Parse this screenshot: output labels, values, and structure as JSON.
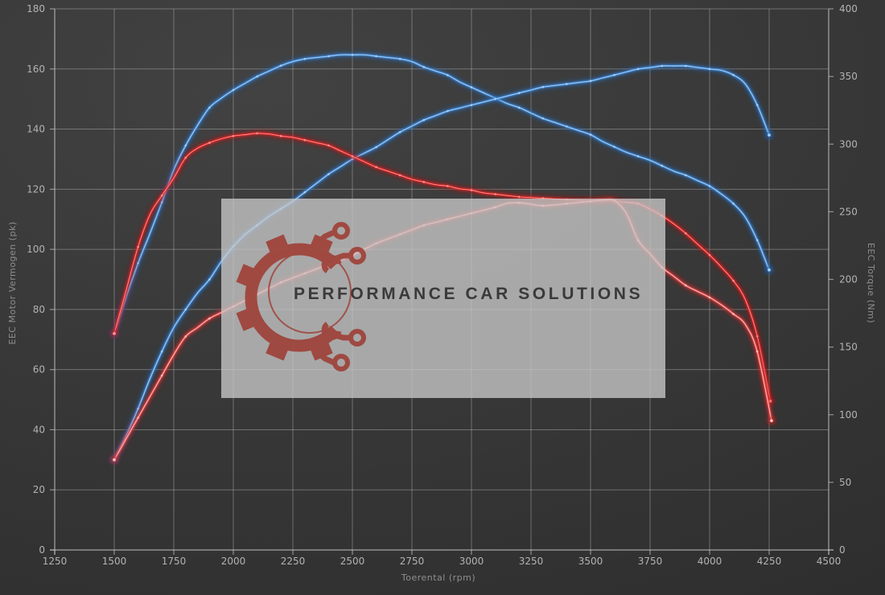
{
  "watermark": {
    "brand": "PERFORMANCE CAR SOLUTIONS",
    "logo_icon": "gear-circuit-logo",
    "logo_color": "#9e3f36",
    "text_color": "#3a3a3a",
    "box_color": "#c8c8c8"
  },
  "colors": {
    "background": "#383838",
    "grid": "#d0d0d0",
    "blue_curve": "#4792e0",
    "red_curve": "#e32222"
  },
  "chart_data": {
    "type": "line",
    "title": "",
    "xlabel": "Toerental (rpm)",
    "ylabel_left": "EEC Motor Vermogen (pk)",
    "ylabel_right": "EEC Torque (Nm)",
    "xlim": [
      1250,
      4500
    ],
    "ylim_left": [
      0,
      180
    ],
    "ylim_right": [
      0,
      400
    ],
    "grid": true,
    "legend_position": "none",
    "x_ticks": [
      1250,
      1500,
      1750,
      2000,
      2250,
      2500,
      2750,
      3000,
      3250,
      3500,
      3750,
      4000,
      4250,
      4500
    ],
    "y_left_ticks": [
      0,
      20,
      40,
      60,
      80,
      100,
      120,
      140,
      160,
      180
    ],
    "y_right_ticks": [
      0,
      50,
      100,
      150,
      200,
      250,
      300,
      350,
      400
    ],
    "series": [
      {
        "name": "torque-tuned-blue",
        "axis": "right",
        "unit": "Nm",
        "color": "#4792e0",
        "glow": "#1f5fae",
        "core": "#aed4f7",
        "points": [
          [
            1500,
            160
          ],
          [
            1550,
            187
          ],
          [
            1600,
            212
          ],
          [
            1650,
            234
          ],
          [
            1700,
            257
          ],
          [
            1750,
            281
          ],
          [
            1800,
            299
          ],
          [
            1850,
            314
          ],
          [
            1900,
            327
          ],
          [
            1950,
            334
          ],
          [
            2000,
            340
          ],
          [
            2050,
            345
          ],
          [
            2100,
            350
          ],
          [
            2150,
            354
          ],
          [
            2200,
            358
          ],
          [
            2250,
            361
          ],
          [
            2300,
            363
          ],
          [
            2350,
            364
          ],
          [
            2400,
            365
          ],
          [
            2450,
            366
          ],
          [
            2500,
            366
          ],
          [
            2550,
            366
          ],
          [
            2600,
            365
          ],
          [
            2650,
            364
          ],
          [
            2700,
            363
          ],
          [
            2750,
            361
          ],
          [
            2800,
            357
          ],
          [
            2850,
            354
          ],
          [
            2900,
            351
          ],
          [
            2950,
            346
          ],
          [
            3000,
            342
          ],
          [
            3050,
            338
          ],
          [
            3100,
            334
          ],
          [
            3150,
            330
          ],
          [
            3200,
            327
          ],
          [
            3250,
            323
          ],
          [
            3300,
            319
          ],
          [
            3350,
            316
          ],
          [
            3400,
            313
          ],
          [
            3450,
            310
          ],
          [
            3500,
            307
          ],
          [
            3550,
            302
          ],
          [
            3600,
            298
          ],
          [
            3650,
            294
          ],
          [
            3700,
            291
          ],
          [
            3750,
            288
          ],
          [
            3800,
            284
          ],
          [
            3850,
            280
          ],
          [
            3900,
            277
          ],
          [
            3950,
            273
          ],
          [
            4000,
            269
          ],
          [
            4050,
            263
          ],
          [
            4100,
            256
          ],
          [
            4150,
            246
          ],
          [
            4200,
            229
          ],
          [
            4250,
            207
          ]
        ]
      },
      {
        "name": "power-tuned-blue",
        "axis": "left",
        "unit": "pk",
        "color": "#4792e0",
        "glow": "#1f5fae",
        "core": "#aed4f7",
        "points": [
          [
            1500,
            30
          ],
          [
            1550,
            38
          ],
          [
            1600,
            47
          ],
          [
            1650,
            57
          ],
          [
            1700,
            66
          ],
          [
            1750,
            74
          ],
          [
            1800,
            80
          ],
          [
            1850,
            85.5
          ],
          [
            1900,
            90
          ],
          [
            1950,
            96
          ],
          [
            2000,
            101
          ],
          [
            2050,
            105
          ],
          [
            2100,
            108
          ],
          [
            2150,
            111
          ],
          [
            2200,
            113.5
          ],
          [
            2250,
            116
          ],
          [
            2300,
            119
          ],
          [
            2350,
            122
          ],
          [
            2400,
            125
          ],
          [
            2450,
            127.5
          ],
          [
            2500,
            130
          ],
          [
            2550,
            132
          ],
          [
            2600,
            134
          ],
          [
            2650,
            136.5
          ],
          [
            2700,
            139
          ],
          [
            2750,
            141
          ],
          [
            2800,
            143
          ],
          [
            2850,
            144.5
          ],
          [
            2900,
            146
          ],
          [
            2950,
            147
          ],
          [
            3000,
            148
          ],
          [
            3050,
            149
          ],
          [
            3100,
            150
          ],
          [
            3150,
            151
          ],
          [
            3200,
            152
          ],
          [
            3250,
            153
          ],
          [
            3300,
            154
          ],
          [
            3350,
            154.5
          ],
          [
            3400,
            155
          ],
          [
            3450,
            155.5
          ],
          [
            3500,
            156
          ],
          [
            3550,
            157
          ],
          [
            3600,
            158
          ],
          [
            3650,
            159
          ],
          [
            3700,
            160
          ],
          [
            3750,
            160.5
          ],
          [
            3800,
            161
          ],
          [
            3850,
            161
          ],
          [
            3900,
            161
          ],
          [
            3950,
            160.5
          ],
          [
            4000,
            160
          ],
          [
            4050,
            159.5
          ],
          [
            4100,
            158
          ],
          [
            4150,
            155
          ],
          [
            4200,
            148
          ],
          [
            4250,
            138
          ]
        ]
      },
      {
        "name": "torque-original-red",
        "axis": "right",
        "unit": "Nm",
        "color": "#e32222",
        "glow": "#b51515",
        "core": "#ff9a9a",
        "points": [
          [
            1500,
            160
          ],
          [
            1550,
            192
          ],
          [
            1600,
            224
          ],
          [
            1650,
            248
          ],
          [
            1700,
            262
          ],
          [
            1750,
            275
          ],
          [
            1800,
            290
          ],
          [
            1850,
            297
          ],
          [
            1900,
            301
          ],
          [
            1950,
            304
          ],
          [
            2000,
            306
          ],
          [
            2050,
            307
          ],
          [
            2100,
            308
          ],
          [
            2150,
            307.5
          ],
          [
            2200,
            306
          ],
          [
            2250,
            305
          ],
          [
            2300,
            303
          ],
          [
            2350,
            301
          ],
          [
            2400,
            299
          ],
          [
            2450,
            295
          ],
          [
            2500,
            291
          ],
          [
            2550,
            287
          ],
          [
            2600,
            283
          ],
          [
            2650,
            280
          ],
          [
            2700,
            277
          ],
          [
            2750,
            274
          ],
          [
            2800,
            272
          ],
          [
            2850,
            270
          ],
          [
            2900,
            269
          ],
          [
            2950,
            267
          ],
          [
            3000,
            266
          ],
          [
            3050,
            264
          ],
          [
            3100,
            263
          ],
          [
            3150,
            262
          ],
          [
            3200,
            261
          ],
          [
            3250,
            260.5
          ],
          [
            3300,
            260
          ],
          [
            3350,
            259.5
          ],
          [
            3400,
            259
          ],
          [
            3450,
            258.5
          ],
          [
            3500,
            258
          ],
          [
            3550,
            258
          ],
          [
            3600,
            258
          ],
          [
            3650,
            257
          ],
          [
            3700,
            256
          ],
          [
            3750,
            252
          ],
          [
            3800,
            247
          ],
          [
            3850,
            241
          ],
          [
            3900,
            234
          ],
          [
            3950,
            226
          ],
          [
            4000,
            218
          ],
          [
            4050,
            209
          ],
          [
            4100,
            199
          ],
          [
            4150,
            185
          ],
          [
            4200,
            158
          ],
          [
            4255,
            110
          ]
        ]
      },
      {
        "name": "power-original-red",
        "axis": "left",
        "unit": "pk",
        "color": "#f05050",
        "glow": "#c81e1e",
        "core": "#ffc8c8",
        "points": [
          [
            1500,
            30
          ],
          [
            1550,
            37
          ],
          [
            1600,
            44
          ],
          [
            1650,
            51
          ],
          [
            1700,
            58
          ],
          [
            1750,
            65
          ],
          [
            1800,
            71
          ],
          [
            1850,
            74
          ],
          [
            1900,
            77
          ],
          [
            1950,
            79
          ],
          [
            2000,
            81
          ],
          [
            2050,
            83
          ],
          [
            2100,
            85
          ],
          [
            2150,
            87
          ],
          [
            2200,
            89
          ],
          [
            2250,
            90.5
          ],
          [
            2300,
            92
          ],
          [
            2350,
            93.5
          ],
          [
            2400,
            95
          ],
          [
            2450,
            96.5
          ],
          [
            2500,
            98
          ],
          [
            2550,
            100
          ],
          [
            2600,
            102
          ],
          [
            2650,
            103.5
          ],
          [
            2700,
            105
          ],
          [
            2750,
            106.5
          ],
          [
            2800,
            108
          ],
          [
            2850,
            109
          ],
          [
            2900,
            110
          ],
          [
            2950,
            111
          ],
          [
            3000,
            112
          ],
          [
            3050,
            113
          ],
          [
            3100,
            114
          ],
          [
            3150,
            115.3
          ],
          [
            3200,
            115.5
          ],
          [
            3250,
            115
          ],
          [
            3300,
            114.5
          ],
          [
            3350,
            114.8
          ],
          [
            3400,
            115.2
          ],
          [
            3450,
            115.6
          ],
          [
            3500,
            116
          ],
          [
            3550,
            116.4
          ],
          [
            3600,
            116.2
          ],
          [
            3650,
            112
          ],
          [
            3700,
            103
          ],
          [
            3750,
            98.5
          ],
          [
            3800,
            94
          ],
          [
            3850,
            91
          ],
          [
            3900,
            88
          ],
          [
            3950,
            86
          ],
          [
            4000,
            84
          ],
          [
            4050,
            81.5
          ],
          [
            4100,
            78.5
          ],
          [
            4150,
            75
          ],
          [
            4200,
            66
          ],
          [
            4260,
            43
          ]
        ]
      }
    ]
  }
}
